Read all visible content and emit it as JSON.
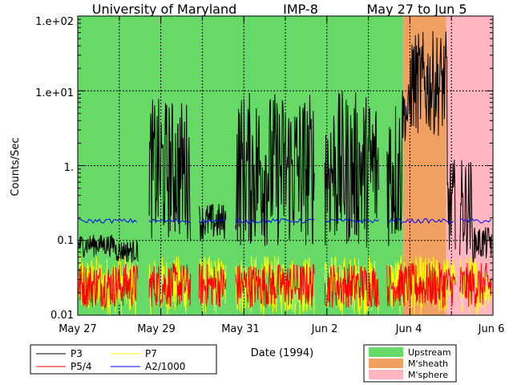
{
  "chart_data": {
    "type": "line",
    "title_parts": [
      "University of Maryland",
      "IMP-8",
      "May 27 to Jun 5"
    ],
    "xlabel": "Date (1994)",
    "ylabel": "Counts/Sec",
    "yscale": "log",
    "ylim": [
      0.01,
      100
    ],
    "xlim": [
      "1994-05-27",
      "1994-06-06"
    ],
    "grid": true,
    "x_ticks": [
      "May 27",
      "May 29",
      "May 31",
      "Jun 2",
      "Jun 4",
      "Jun 6"
    ],
    "y_ticks": [
      "0.01",
      "0.1",
      "1.",
      "1.e+01",
      "1.e+02"
    ],
    "regions": [
      {
        "name": "Upstream",
        "color": "#66d966",
        "start": "1994-05-27T00:00",
        "end": "1994-06-03T20:00"
      },
      {
        "name": "M'sheath",
        "color": "#f0a060",
        "start": "1994-06-03T20:00",
        "end": "1994-06-04T21:00"
      },
      {
        "name": "M'sphere",
        "color": "#ffb6c1",
        "start": "1994-06-04T21:00",
        "end": "1994-06-06T00:00"
      }
    ],
    "series": [
      {
        "name": "P3",
        "color": "#000000"
      },
      {
        "name": "P5/4",
        "color": "#ff0000"
      },
      {
        "name": "P7",
        "color": "#ffff00"
      },
      {
        "name": "A2/1000",
        "color": "#0000ff"
      }
    ],
    "legend_placement": "bottom"
  }
}
